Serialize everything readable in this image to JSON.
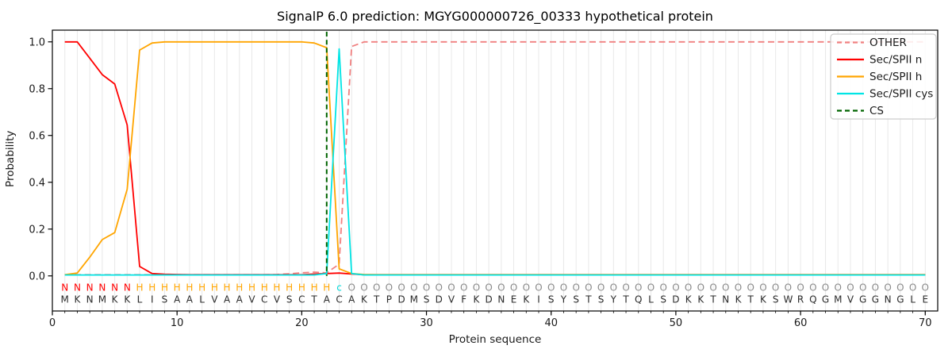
{
  "chart_data": {
    "type": "line",
    "title": "SignalP 6.0 prediction: MGYG000000726_00333 hypothetical protein",
    "xlabel": "Protein sequence",
    "ylabel": "Probability",
    "xlim": [
      0,
      71
    ],
    "ylim": [
      -0.15,
      1.05
    ],
    "x_ticks": [
      0,
      10,
      20,
      30,
      40,
      50,
      60,
      70
    ],
    "x_tick_labels": [
      "0",
      "10",
      "20",
      "30",
      "40",
      "50",
      "60",
      "70"
    ],
    "y_ticks": [
      0.0,
      0.2,
      0.4,
      0.6,
      0.8,
      1.0
    ],
    "y_tick_labels": [
      "0.0",
      "0.2",
      "0.4",
      "0.6",
      "0.8",
      "1.0"
    ],
    "grid": "vertical-gridline-at-every-residue",
    "legend_position": "upper-right",
    "x": [
      1,
      2,
      3,
      4,
      5,
      6,
      7,
      8,
      9,
      10,
      11,
      12,
      13,
      14,
      15,
      16,
      17,
      18,
      19,
      20,
      21,
      22,
      23,
      24,
      25,
      26,
      27,
      28,
      29,
      30,
      31,
      32,
      33,
      34,
      35,
      36,
      37,
      38,
      39,
      40,
      41,
      42,
      43,
      44,
      45,
      46,
      47,
      48,
      49,
      50,
      51,
      52,
      53,
      54,
      55,
      56,
      57,
      58,
      59,
      60,
      61,
      62,
      63,
      64,
      65,
      66,
      67,
      68,
      69,
      70
    ],
    "series": [
      {
        "name": "OTHER",
        "id": "other",
        "color": "#F08080",
        "dash": "dashed",
        "values": [
          0.005,
          0.005,
          0.005,
          0.005,
          0.005,
          0.005,
          0.005,
          0.005,
          0.005,
          0.005,
          0.005,
          0.005,
          0.005,
          0.005,
          0.005,
          0.005,
          0.005,
          0.006,
          0.009,
          0.013,
          0.016,
          0.013,
          0.05,
          0.98,
          1.0,
          1.0,
          1.0,
          1.0,
          1.0,
          1.0,
          1.0,
          1.0,
          1.0,
          1.0,
          1.0,
          1.0,
          1.0,
          1.0,
          1.0,
          1.0,
          1.0,
          1.0,
          1.0,
          1.0,
          1.0,
          1.0,
          1.0,
          1.0,
          1.0,
          1.0,
          1.0,
          1.0,
          1.0,
          1.0,
          1.0,
          1.0,
          1.0,
          1.0,
          1.0,
          1.0,
          1.0,
          1.0,
          1.0,
          1.0,
          1.0,
          1.0,
          1.0,
          1.0,
          1.0,
          1.0
        ]
      },
      {
        "name": "Sec/SPII n",
        "id": "sec-spii-n",
        "color": "#FF0000",
        "dash": "solid",
        "values": [
          1.0,
          1.0,
          0.93,
          0.86,
          0.82,
          0.645,
          0.04,
          0.01,
          0.007,
          0.006,
          0.005,
          0.005,
          0.005,
          0.005,
          0.005,
          0.005,
          0.005,
          0.005,
          0.005,
          0.005,
          0.008,
          0.01,
          0.012,
          0.008,
          0.005,
          0.005,
          0.005,
          0.005,
          0.005,
          0.005,
          0.005,
          0.005,
          0.005,
          0.005,
          0.005,
          0.005,
          0.005,
          0.005,
          0.005,
          0.005,
          0.005,
          0.005,
          0.005,
          0.005,
          0.005,
          0.005,
          0.005,
          0.005,
          0.005,
          0.005,
          0.005,
          0.005,
          0.005,
          0.005,
          0.005,
          0.005,
          0.005,
          0.005,
          0.005,
          0.005,
          0.005,
          0.005,
          0.005,
          0.005,
          0.005,
          0.005,
          0.005,
          0.005,
          0.005,
          0.005
        ]
      },
      {
        "name": "Sec/SPII h",
        "id": "sec-spii-h",
        "color": "#FFA500",
        "dash": "solid",
        "values": [
          0.005,
          0.012,
          0.08,
          0.155,
          0.185,
          0.37,
          0.965,
          0.995,
          1.0,
          1.0,
          1.0,
          1.0,
          1.0,
          1.0,
          1.0,
          1.0,
          1.0,
          1.0,
          1.0,
          1.0,
          0.995,
          0.975,
          0.03,
          0.01,
          0.006,
          0.005,
          0.005,
          0.005,
          0.005,
          0.005,
          0.005,
          0.005,
          0.005,
          0.005,
          0.005,
          0.005,
          0.005,
          0.005,
          0.005,
          0.005,
          0.005,
          0.005,
          0.005,
          0.005,
          0.005,
          0.005,
          0.005,
          0.005,
          0.005,
          0.005,
          0.005,
          0.005,
          0.005,
          0.005,
          0.005,
          0.005,
          0.005,
          0.005,
          0.005,
          0.005,
          0.005,
          0.005,
          0.005,
          0.005,
          0.005,
          0.005,
          0.005,
          0.005,
          0.005,
          0.005
        ]
      },
      {
        "name": "Sec/SPII cys",
        "id": "sec-spii-cys",
        "color": "#00E5E5",
        "dash": "solid",
        "values": [
          0.004,
          0.004,
          0.004,
          0.004,
          0.004,
          0.004,
          0.004,
          0.004,
          0.004,
          0.004,
          0.004,
          0.004,
          0.004,
          0.004,
          0.004,
          0.004,
          0.004,
          0.004,
          0.004,
          0.004,
          0.004,
          0.01,
          0.97,
          0.01,
          0.004,
          0.004,
          0.004,
          0.004,
          0.004,
          0.004,
          0.004,
          0.004,
          0.004,
          0.004,
          0.004,
          0.004,
          0.004,
          0.004,
          0.004,
          0.004,
          0.004,
          0.004,
          0.004,
          0.004,
          0.004,
          0.004,
          0.004,
          0.004,
          0.004,
          0.004,
          0.004,
          0.004,
          0.004,
          0.004,
          0.004,
          0.004,
          0.004,
          0.004,
          0.004,
          0.004,
          0.004,
          0.004,
          0.004,
          0.004,
          0.004,
          0.004,
          0.004,
          0.004,
          0.004,
          0.004
        ]
      }
    ],
    "cs_line": {
      "name": "CS",
      "x": 22,
      "color": "#006400",
      "dash": "dashed"
    },
    "legend": {
      "entries": [
        {
          "label": "OTHER",
          "color": "#F08080",
          "dash": "dashed"
        },
        {
          "label": "Sec/SPII n",
          "color": "#FF0000",
          "dash": "solid"
        },
        {
          "label": "Sec/SPII h",
          "color": "#FFA500",
          "dash": "solid"
        },
        {
          "label": "Sec/SPII cys",
          "color": "#00E5E5",
          "dash": "solid"
        },
        {
          "label": "CS",
          "color": "#006400",
          "dash": "dashed"
        }
      ]
    },
    "sequence": "MKNMKKLISAALVAAVCVSCTACAKTPDMSDVFKDNEKISYSTSYTQLSDKKTNKTKSWRQGMVGGNGLE",
    "annotation": "NNNNNNHHHHHHHHHHHHHHHHcOOOOOOOOOOOOOOOOOOOOOOOOOOOOOOOOOOOOOOOOOOOOOOO",
    "annotation_colors": {
      "N": "#FF0000",
      "H": "#FFA500",
      "c": "#00D9D9",
      "O": "#8A8A8A"
    },
    "sequence_color": "#2B2B2B",
    "colors": {
      "grid": "#E8E8E8",
      "spine": "#000000",
      "text": "#1A1A1A",
      "legend_border": "#CCCCCC"
    }
  }
}
